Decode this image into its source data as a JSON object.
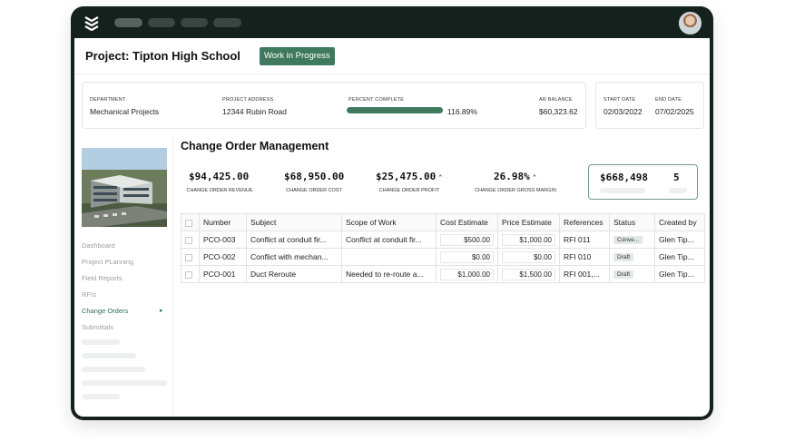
{
  "project": {
    "title": "Project: Tipton High School",
    "status": "Work in Progress"
  },
  "info": {
    "department_label": "DEPARTMENT",
    "department": "Mechanical Projects",
    "address_label": "PROJECT ADDRESS",
    "address": "12344 Rubin Road",
    "percent_label": "PERCENT COMPLETE",
    "percent": "116.89%",
    "percent_fill": 1.0,
    "ar_label": "AR BALANCE",
    "ar_balance": "$60,323.62",
    "start_label": "START DATE",
    "start_date": "02/03/2022",
    "end_label": "END DATE",
    "end_date": "07/02/2025"
  },
  "sidebar": {
    "items": [
      {
        "label": "Dashboard"
      },
      {
        "label": "Project PLanning"
      },
      {
        "label": "Field Reports"
      },
      {
        "label": "RFIs"
      },
      {
        "label": "Change Orders"
      },
      {
        "label": "Submittals"
      }
    ],
    "active": "Change Orders"
  },
  "section": {
    "title": "Change Order Management"
  },
  "metrics": [
    {
      "value": "$94,425.00",
      "label": "CHANGE ORDER REVENUE",
      "caret": ""
    },
    {
      "value": "$68,950.00",
      "label": "CHANGE ORDER COST",
      "caret": ""
    },
    {
      "value": "$25,475.00",
      "label": "CHANGE ORDER PROFIT",
      "caret": "^"
    },
    {
      "value": "26.98%",
      "label": "CHANGE ORDER GROSS MARGIN",
      "caret": "^"
    }
  ],
  "summary": {
    "amount": "$668,498",
    "count": "5"
  },
  "table": {
    "columns": [
      "Number",
      "Subject",
      "Scope of Work",
      "Cost Estimate",
      "Price Estimate",
      "References",
      "Status",
      "Created by"
    ],
    "rows": [
      {
        "number": "PCO-003",
        "subject": "Conflict at conduit fir...",
        "scope": "Conflict at conduit fir...",
        "cost": "$500.00",
        "price": "$1,000.00",
        "refs": "RFI 011",
        "status": "Conve...",
        "created_by": "Glen Tip..."
      },
      {
        "number": "PCO-002",
        "subject": "Conflict with mechan...",
        "scope": "",
        "cost": "$0.00",
        "price": "$0.00",
        "refs": "RFI 010",
        "status": "Draft",
        "created_by": "Glen Tip..."
      },
      {
        "number": "PCO-001",
        "subject": "Duct Reroute",
        "scope": "Needed to re-route a...",
        "cost": "$1,000.00",
        "price": "$1,500.00",
        "refs": "RFI 001,...",
        "status": "Draft",
        "created_by": "Glen Tip..."
      }
    ]
  },
  "colors": {
    "frame": "#15211c",
    "accent": "#3f7a5f",
    "active_nav": "#2e6e50"
  },
  "icons": {
    "logo": "stacked-chevrons-logo-icon",
    "avatar": "user-avatar"
  }
}
